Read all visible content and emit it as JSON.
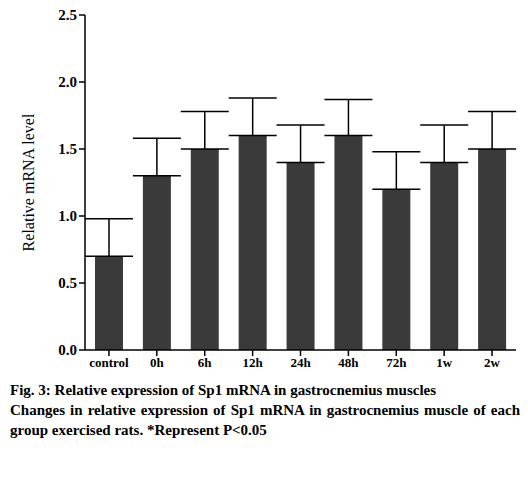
{
  "chart_data": {
    "type": "bar",
    "title": "Fig. 3: Relative expression of Sp1 mRNA in gastrocnemius muscles",
    "subtitle": "Changes in relative expression of Sp1 mRNA in gastrocnemius muscle of each group exercised rats. *Represent P<0.05",
    "y_label": "Relative mRNA level",
    "categories": [
      "control",
      "0h",
      "6h",
      "12h",
      "24h",
      "48h",
      "72h",
      "1w",
      "2w"
    ],
    "values": [
      0.7,
      1.3,
      1.5,
      1.6,
      1.4,
      1.6,
      1.2,
      1.4,
      1.5
    ],
    "errors": [
      0.28,
      0.28,
      0.28,
      0.28,
      0.28,
      0.27,
      0.28,
      0.28,
      0.28
    ],
    "color": "#3a3a3a",
    "ylim": [
      0,
      2.5
    ],
    "yticks": [
      {
        "value": 0,
        "label": "0.0"
      },
      0.5,
      {
        "value": 1,
        "label": "1.0"
      },
      1.5,
      {
        "value": 2,
        "label": "2.0"
      },
      2.5
    ],
    "grid": false
  }
}
